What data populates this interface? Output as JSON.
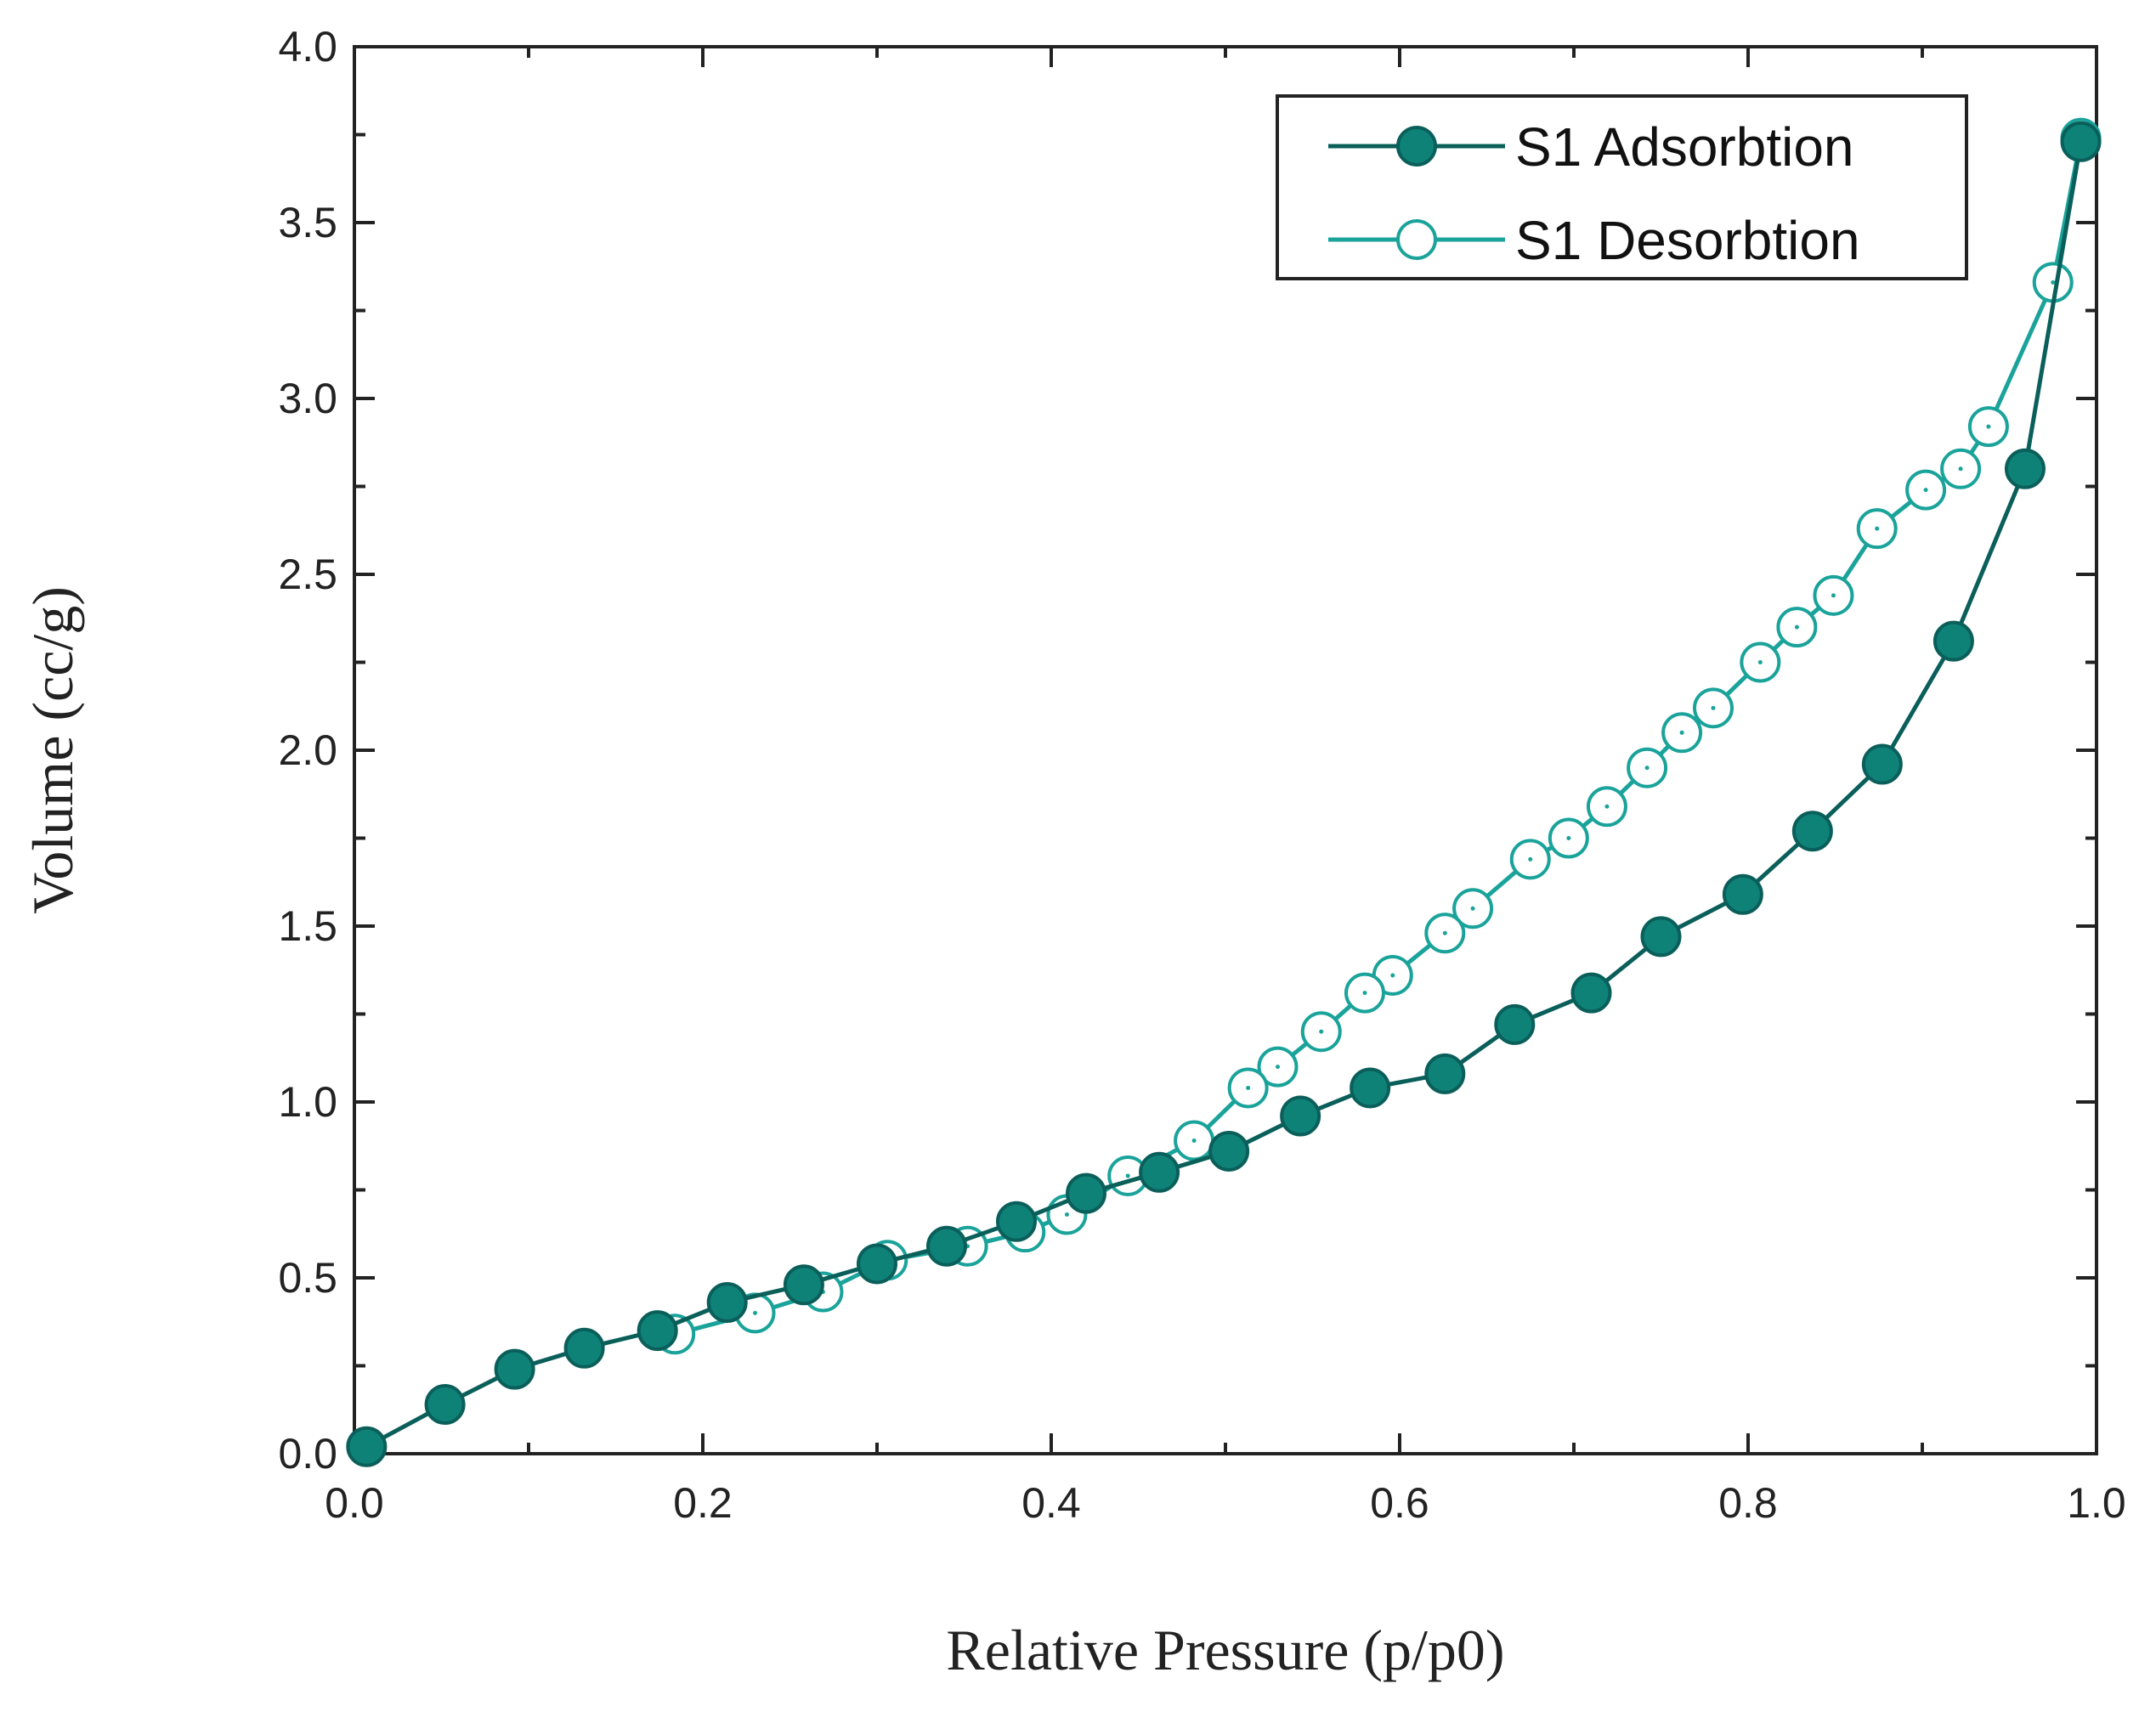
{
  "chart_data": {
    "type": "line",
    "title": "",
    "xlabel": "Relative Pressure (p/p0)",
    "ylabel": "Volume (cc/g)",
    "xlim": [
      0.0,
      1.0
    ],
    "ylim": [
      0.0,
      4.0
    ],
    "x_ticks": [
      "0.0",
      "0.2",
      "0.4",
      "0.6",
      "0.8",
      "1.0"
    ],
    "y_ticks": [
      "0.0",
      "0.5",
      "1.0",
      "1.5",
      "2.0",
      "2.5",
      "3.0",
      "3.5",
      "4.0"
    ],
    "grid": false,
    "legend_position": "top-right",
    "series": [
      {
        "name": "S1 Adsorbtion",
        "marker": "filled-circle",
        "line_color": "#0a5f5a",
        "marker_color": "#0f8278",
        "points": [
          [
            0.007,
            0.02
          ],
          [
            0.052,
            0.14
          ],
          [
            0.092,
            0.24
          ],
          [
            0.132,
            0.3
          ],
          [
            0.174,
            0.35
          ],
          [
            0.214,
            0.43
          ],
          [
            0.258,
            0.48
          ],
          [
            0.3,
            0.54
          ],
          [
            0.34,
            0.59
          ],
          [
            0.38,
            0.66
          ],
          [
            0.42,
            0.74
          ],
          [
            0.462,
            0.8
          ],
          [
            0.502,
            0.86
          ],
          [
            0.543,
            0.96
          ],
          [
            0.583,
            1.04
          ],
          [
            0.626,
            1.08
          ],
          [
            0.666,
            1.22
          ],
          [
            0.71,
            1.31
          ],
          [
            0.75,
            1.47
          ],
          [
            0.797,
            1.59
          ],
          [
            0.837,
            1.77
          ],
          [
            0.877,
            1.96
          ],
          [
            0.918,
            2.31
          ],
          [
            0.959,
            2.8
          ],
          [
            0.991,
            3.73
          ]
        ]
      },
      {
        "name": "S1 Desorbtion",
        "marker": "open-circle",
        "line_color": "#1aa39a",
        "marker_color": "#1aa39a",
        "points": [
          [
            0.991,
            3.74
          ],
          [
            0.975,
            3.33
          ],
          [
            0.938,
            2.92
          ],
          [
            0.922,
            2.8
          ],
          [
            0.902,
            2.74
          ],
          [
            0.874,
            2.63
          ],
          [
            0.849,
            2.44
          ],
          [
            0.828,
            2.35
          ],
          [
            0.807,
            2.25
          ],
          [
            0.78,
            2.12
          ],
          [
            0.762,
            2.05
          ],
          [
            0.742,
            1.95
          ],
          [
            0.719,
            1.84
          ],
          [
            0.697,
            1.75
          ],
          [
            0.675,
            1.69
          ],
          [
            0.642,
            1.55
          ],
          [
            0.626,
            1.48
          ],
          [
            0.596,
            1.36
          ],
          [
            0.58,
            1.31
          ],
          [
            0.555,
            1.2
          ],
          [
            0.53,
            1.1
          ],
          [
            0.513,
            1.04
          ],
          [
            0.482,
            0.89
          ],
          [
            0.444,
            0.79
          ],
          [
            0.409,
            0.68
          ],
          [
            0.385,
            0.63
          ],
          [
            0.352,
            0.59
          ],
          [
            0.306,
            0.55
          ],
          [
            0.269,
            0.46
          ],
          [
            0.23,
            0.4
          ],
          [
            0.184,
            0.34
          ]
        ]
      }
    ]
  }
}
